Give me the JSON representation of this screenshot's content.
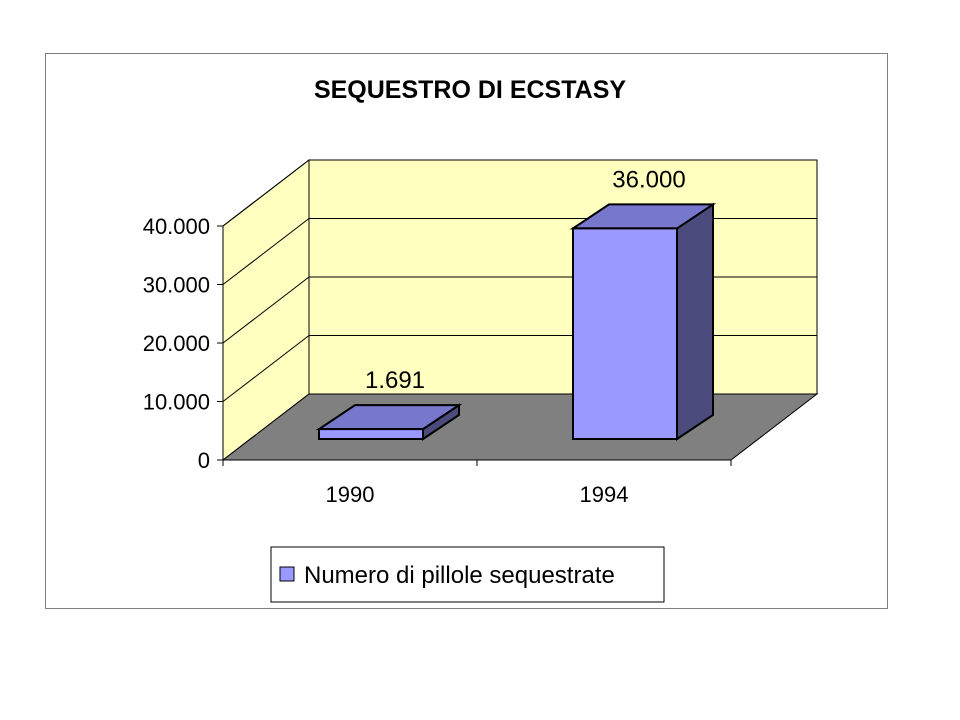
{
  "chart_data": {
    "type": "bar",
    "title": "SEQUESTRO DI ECSTASY",
    "categories": [
      "1990",
      "1994"
    ],
    "series": [
      {
        "name": "Numero di pillole sequestrate",
        "values": [
          1691,
          36000
        ]
      }
    ],
    "data_labels": [
      "1.691",
      "36.000"
    ],
    "y_ticks": [
      0,
      10000,
      20000,
      30000,
      40000
    ],
    "y_tick_labels": [
      "0",
      "10.000",
      "20.000",
      "30.000",
      "40.000"
    ],
    "ylim": [
      0,
      40000
    ],
    "grid": true,
    "legend_position": "bottom",
    "style": "3d-column",
    "colors": {
      "bar_front": "#9999ff",
      "bar_top": "#7777cc",
      "bar_side": "#4b4b7d",
      "walls": "#ffffc0",
      "floor": "#808080"
    }
  }
}
